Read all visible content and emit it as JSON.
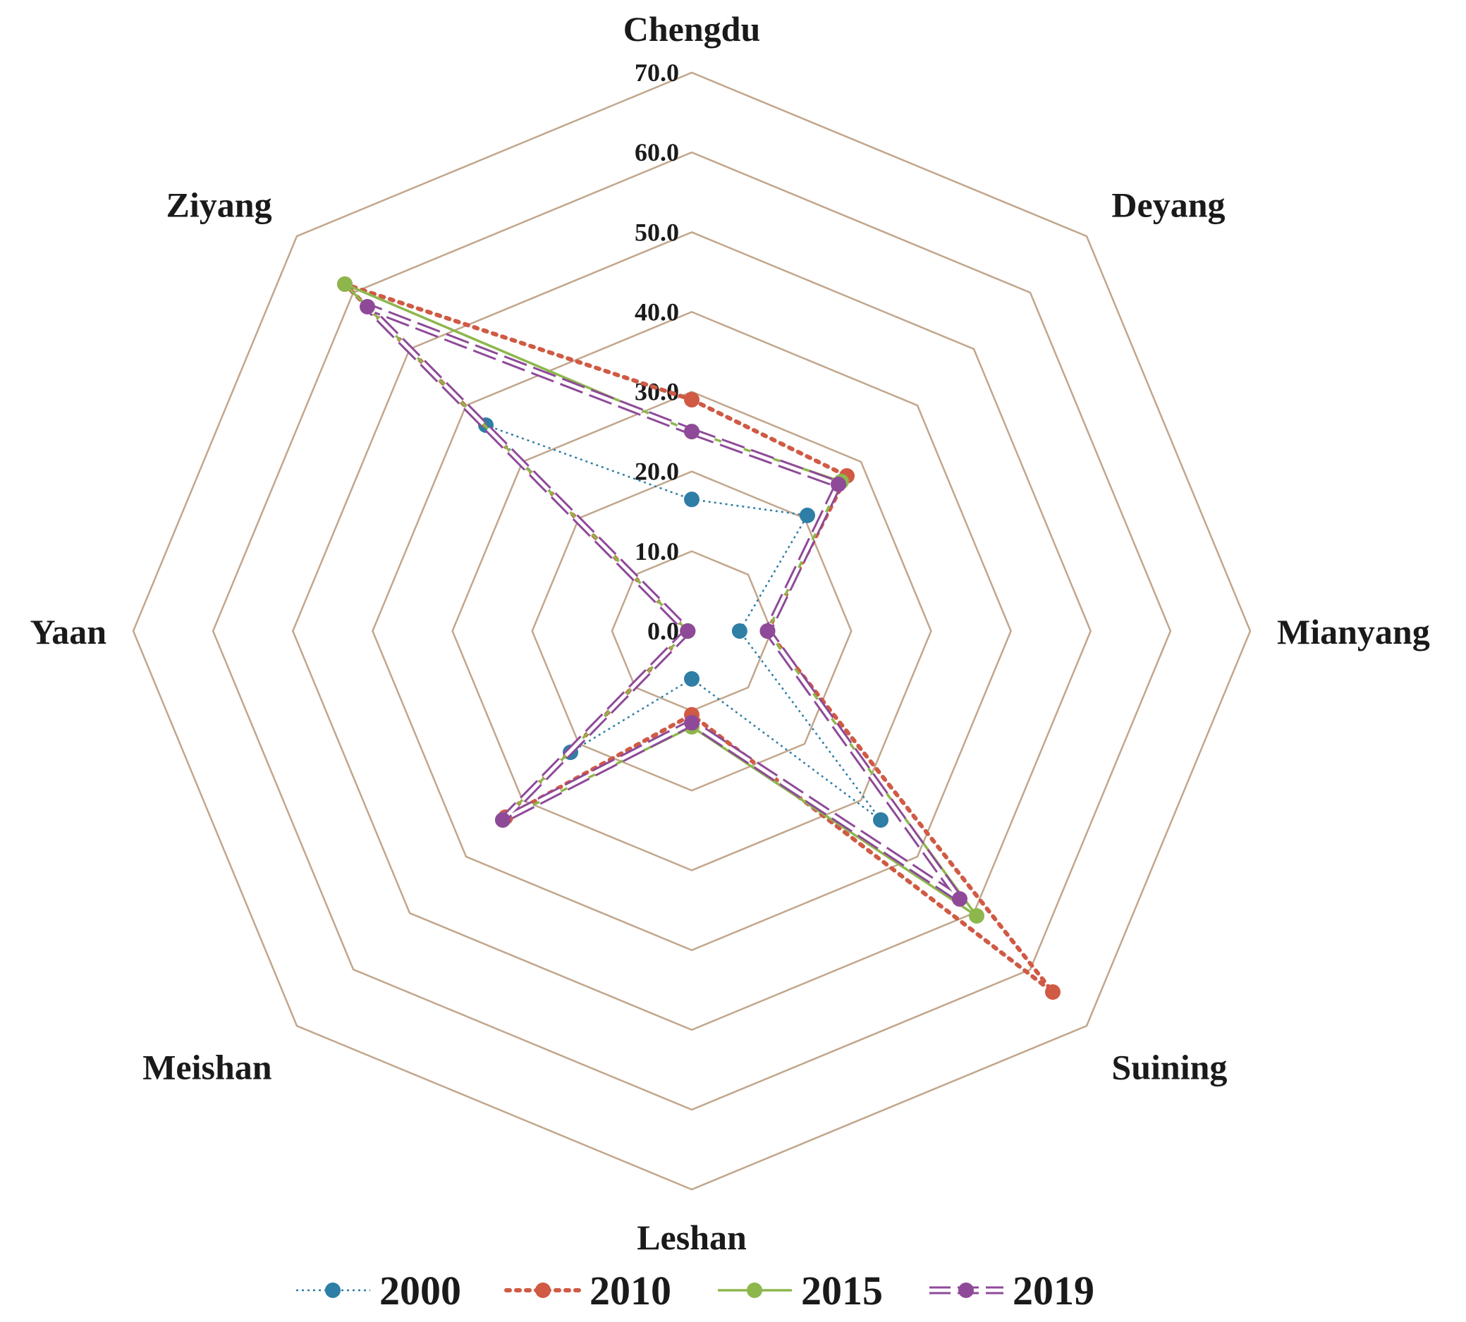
{
  "chart_data": {
    "type": "radar",
    "title": "",
    "categories": [
      "Chengdu",
      "Deyang",
      "Mianyang",
      "Suining",
      "Leshan",
      "Meishan",
      "Yaan",
      "Ziyang"
    ],
    "ticks": [
      "0.0",
      "10.0",
      "20.0",
      "30.0",
      "40.0",
      "50.0",
      "60.0",
      "70.0"
    ],
    "rlim": [
      0,
      70
    ],
    "grid": true,
    "legend_position": "bottom",
    "series": [
      {
        "name": "2000",
        "values": [
          16.5,
          20.5,
          6.0,
          33.5,
          6.0,
          21.5,
          0.5,
          36.5
        ],
        "color": "#2e7ea6",
        "line": "dotted"
      },
      {
        "name": "2010",
        "values": [
          29.0,
          27.5,
          9.5,
          64.0,
          10.5,
          33.0,
          0.5,
          61.5
        ],
        "color": "#d05a44",
        "line": "dotted-heavy"
      },
      {
        "name": "2015",
        "values": [
          25.0,
          26.5,
          9.5,
          50.5,
          12.0,
          33.5,
          0.5,
          61.5
        ],
        "color": "#8db74d",
        "line": "solid"
      },
      {
        "name": "2019",
        "values": [
          25.0,
          26.0,
          9.5,
          47.5,
          11.5,
          33.5,
          0.5,
          57.5
        ],
        "color": "#8e4a98",
        "line": "double-dash"
      }
    ]
  }
}
